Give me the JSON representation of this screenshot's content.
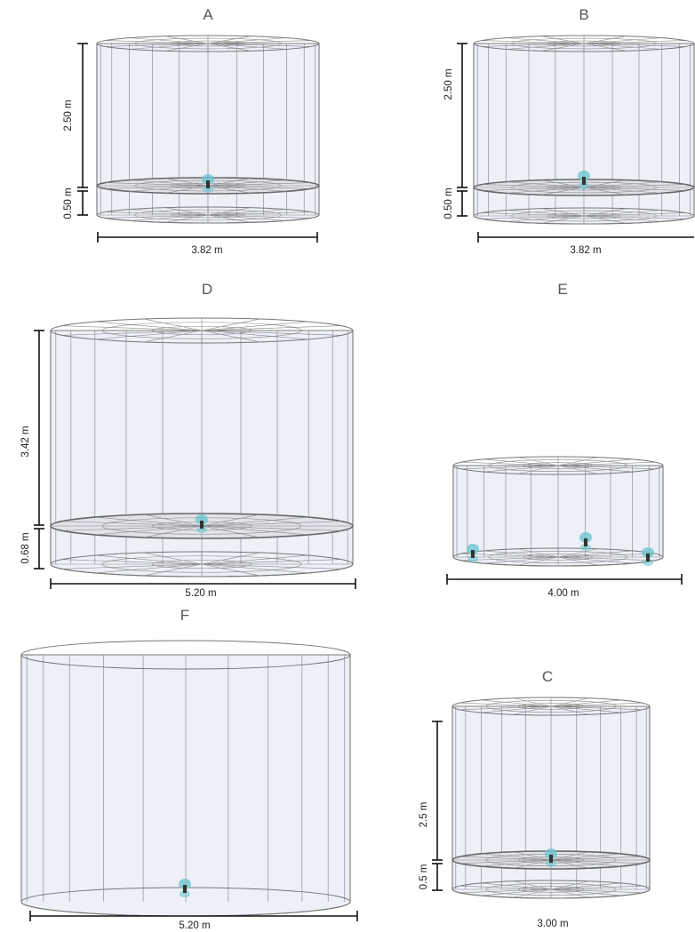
{
  "panels": {
    "A": {
      "label": "A",
      "width": "3.82 m",
      "height_upper": "2.50 m",
      "height_lower": "0.50 m",
      "inner_floor": true,
      "sensors": 1
    },
    "B": {
      "label": "B",
      "width": "3.82 m",
      "height_upper": "2.50 m",
      "height_lower": "0.50 m",
      "inner_floor": true,
      "sensors": 1
    },
    "D": {
      "label": "D",
      "width": "5.20 m",
      "height_upper": "3.42 m",
      "height_lower": "0.68 m",
      "inner_floor": true,
      "sensors": 1
    },
    "E": {
      "label": "E",
      "width": "4.00 m",
      "inner_floor": false,
      "sensors": 3
    },
    "F": {
      "label": "F",
      "width": "5.20 m",
      "inner_floor": false,
      "sensors": 1
    },
    "C": {
      "label": "C",
      "width": "3.00 m",
      "height_upper": "2.5 m",
      "height_lower": "0.5 m",
      "inner_floor": true,
      "sensors": 1
    }
  },
  "colors": {
    "fill": "#eef0f8",
    "edge": "#777777",
    "disc": "#888888",
    "sensor": "#6cc7cf"
  }
}
